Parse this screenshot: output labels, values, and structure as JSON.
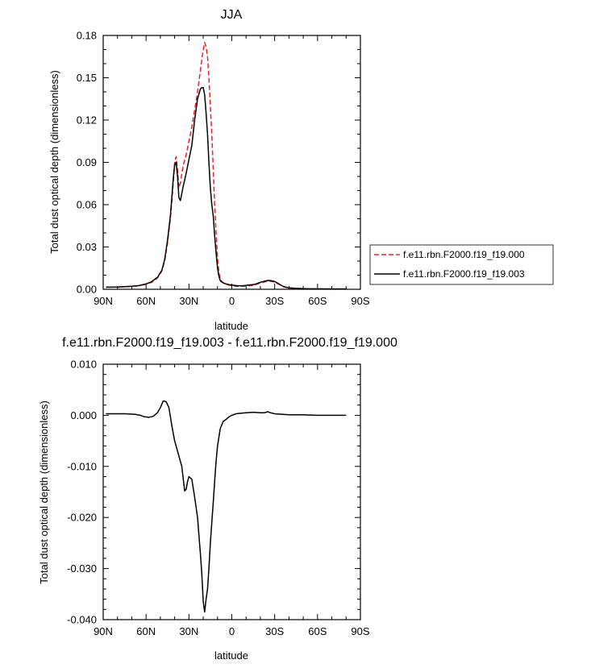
{
  "chart_data": [
    {
      "type": "line",
      "title": "JJA",
      "xlabel": "latitude",
      "ylabel": "Total dust optical depth (dimensionless)",
      "xlim": [
        90,
        -90
      ],
      "ylim": [
        0,
        0.18
      ],
      "x_ticks": [
        90,
        60,
        30,
        0,
        -30,
        -60,
        -90
      ],
      "x_tick_labels": [
        "90N",
        "60N",
        "30N",
        "0",
        "30S",
        "60S",
        "90S"
      ],
      "y_ticks": [
        0,
        0.03,
        0.06,
        0.09,
        0.12,
        0.15,
        0.18
      ],
      "y_tick_labels": [
        "0.00",
        "0.03",
        "0.06",
        "0.09",
        "0.12",
        "0.15",
        "0.18"
      ],
      "legend_position": "right",
      "series": [
        {
          "name": "f.e11.rbn.F2000.f19_f19.000",
          "color": "#e8262a",
          "dash": "dashed",
          "x": [
            88,
            80,
            70,
            65,
            60,
            56,
            52,
            49,
            47,
            45,
            43,
            42,
            41,
            40,
            39,
            38,
            37,
            36,
            35,
            34,
            32,
            30,
            28,
            26,
            24,
            22,
            21,
            20,
            19,
            18,
            17,
            16,
            15,
            14,
            13,
            12,
            11,
            10,
            9,
            8,
            6,
            4,
            2,
            0,
            -4,
            -8,
            -12,
            -16,
            -20,
            -24,
            -26,
            -28,
            -30,
            -33,
            -36,
            -40,
            -45,
            -50,
            -60,
            -70,
            -80
          ],
          "y": [
            0.0015,
            0.0016,
            0.002,
            0.0025,
            0.0035,
            0.005,
            0.008,
            0.013,
            0.02,
            0.033,
            0.05,
            0.062,
            0.075,
            0.09,
            0.094,
            0.085,
            0.072,
            0.075,
            0.082,
            0.088,
            0.095,
            0.105,
            0.115,
            0.127,
            0.14,
            0.155,
            0.163,
            0.17,
            0.175,
            0.172,
            0.165,
            0.15,
            0.13,
            0.11,
            0.085,
            0.06,
            0.04,
            0.022,
            0.012,
            0.007,
            0.0045,
            0.0035,
            0.003,
            0.0025,
            0.002,
            0.0022,
            0.0025,
            0.003,
            0.0045,
            0.0055,
            0.0058,
            0.0056,
            0.005,
            0.0035,
            0.0018,
            0.001,
            0.0006,
            0.0004,
            0.0003,
            0.0002,
            0.0002
          ]
        },
        {
          "name": "f.e11.rbn.F2000.f19_f19.003",
          "color": "#000000",
          "dash": "solid",
          "x": [
            88,
            80,
            70,
            65,
            60,
            56,
            52,
            49,
            47,
            45,
            43,
            42,
            41,
            40,
            39,
            38,
            37,
            36,
            35,
            34,
            32,
            30,
            28,
            26,
            24,
            22,
            21,
            20,
            19,
            18,
            17,
            16,
            15,
            14,
            13,
            12,
            11,
            10,
            9,
            8,
            6,
            4,
            2,
            0,
            -4,
            -8,
            -12,
            -16,
            -20,
            -24,
            -26,
            -28,
            -30,
            -33,
            -36,
            -40,
            -45,
            -50,
            -60,
            -70,
            -80
          ],
          "y": [
            0.0015,
            0.0016,
            0.0021,
            0.0026,
            0.0038,
            0.0055,
            0.0085,
            0.0135,
            0.021,
            0.035,
            0.052,
            0.065,
            0.078,
            0.088,
            0.09,
            0.08,
            0.065,
            0.063,
            0.068,
            0.073,
            0.082,
            0.092,
            0.102,
            0.12,
            0.135,
            0.142,
            0.143,
            0.143,
            0.138,
            0.125,
            0.11,
            0.09,
            0.072,
            0.06,
            0.052,
            0.038,
            0.026,
            0.015,
            0.009,
            0.006,
            0.0045,
            0.0038,
            0.0033,
            0.003,
            0.0025,
            0.0025,
            0.003,
            0.0035,
            0.005,
            0.006,
            0.0063,
            0.006,
            0.0055,
            0.0038,
            0.002,
            0.001,
            0.0006,
            0.0004,
            0.0003,
            0.0002,
            0.0002
          ]
        }
      ]
    },
    {
      "type": "line",
      "title": "f.e11.rbn.F2000.f19_f19.003 - f.e11.rbn.F2000.f19_f19.000",
      "xlabel": "latitude",
      "ylabel": "Total dust optical depth (dimensionless)",
      "xlim": [
        90,
        -90
      ],
      "ylim": [
        -0.04,
        0.01
      ],
      "x_ticks": [
        90,
        60,
        30,
        0,
        -30,
        -60,
        -90
      ],
      "x_tick_labels": [
        "90N",
        "60N",
        "30N",
        "0",
        "30S",
        "60S",
        "90S"
      ],
      "y_ticks": [
        -0.04,
        -0.03,
        -0.02,
        -0.01,
        0,
        0.01
      ],
      "y_tick_labels": [
        "-0.040",
        "-0.030",
        "-0.020",
        "-0.010",
        "0.000",
        "0.010"
      ],
      "series": [
        {
          "name": "",
          "color": "#000000",
          "dash": "solid",
          "x": [
            88,
            75,
            68,
            64,
            61,
            58,
            55,
            52,
            50,
            48,
            46,
            44,
            42,
            40,
            38,
            36,
            35,
            33,
            32,
            31,
            30,
            28,
            26,
            24,
            22,
            21,
            20,
            19,
            18,
            17,
            16,
            15,
            14,
            13,
            12,
            11,
            10,
            8,
            6,
            4,
            2,
            0,
            -3,
            -6,
            -10,
            -15,
            -20,
            -23,
            -25,
            -27,
            -30,
            -35,
            -40,
            -50,
            -60,
            -70,
            -80
          ],
          "y": [
            0.0003,
            0.0003,
            0.0002,
            0,
            -0.0003,
            -0.0004,
            -0.0002,
            0.0005,
            0.0015,
            0.0028,
            0.0027,
            0.0015,
            -0.002,
            -0.005,
            -0.007,
            -0.009,
            -0.01,
            -0.0148,
            -0.0145,
            -0.013,
            -0.012,
            -0.0125,
            -0.016,
            -0.02,
            -0.027,
            -0.031,
            -0.0365,
            -0.0385,
            -0.036,
            -0.034,
            -0.03,
            -0.025,
            -0.021,
            -0.017,
            -0.013,
            -0.009,
            -0.006,
            -0.0025,
            -0.0012,
            -0.0008,
            -0.0003,
            0,
            0.0003,
            0.0004,
            0.0005,
            0.0006,
            0.0005,
            0.0005,
            0.0007,
            0.0005,
            0.0003,
            0.0002,
            0.0001,
            0.0001,
            0,
            0,
            0
          ]
        }
      ]
    }
  ]
}
